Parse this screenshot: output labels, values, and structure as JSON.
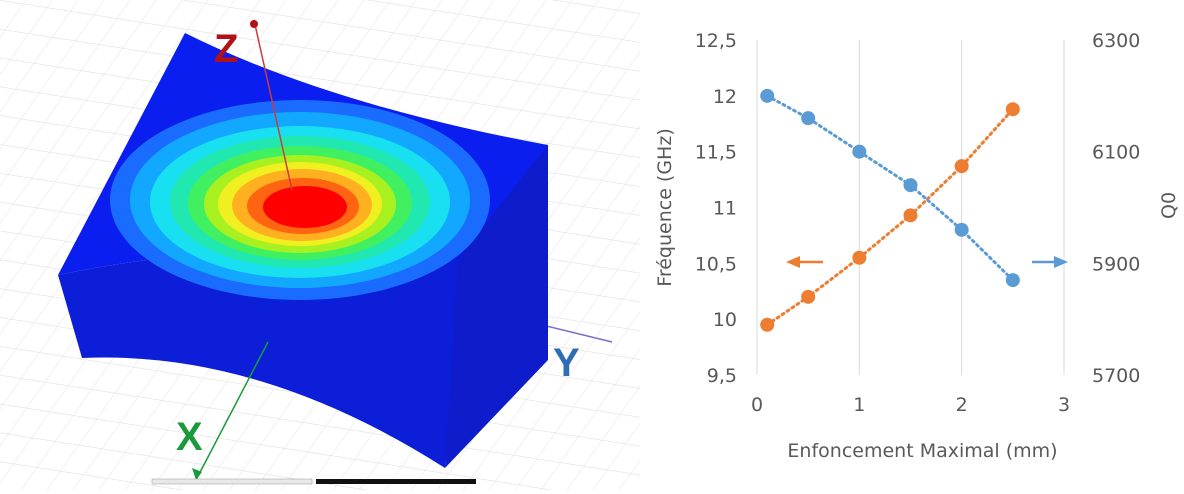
{
  "simulation": {
    "axis_labels": {
      "z": "Z",
      "x": "X",
      "y": "Y"
    },
    "colors": {
      "z": "#b01218",
      "x": "#1a9a3a",
      "y": "#2d6eb4",
      "body": "#0b1ef0",
      "hotspot": "#ff0000"
    }
  },
  "chart_data": {
    "type": "scatter",
    "xlabel": "Enfoncement Maximal (mm)",
    "ylabel": "Fréquence (GHz)",
    "y2label": "Q0",
    "xlim": [
      0,
      3
    ],
    "ylim": [
      9.5,
      12.5
    ],
    "y2lim": [
      5700,
      6300
    ],
    "x_ticks": [
      "0",
      "1",
      "2",
      "3"
    ],
    "y_ticks": [
      "9,5",
      "10",
      "10,5",
      "11",
      "11,5",
      "12",
      "12,5"
    ],
    "y2_ticks": [
      "5700",
      "5900",
      "6100",
      "6300"
    ],
    "grid": "vertical",
    "series": [
      {
        "axis": "left",
        "color": "#ed7d31",
        "trendline": "dotted",
        "indicator_arrow": "left",
        "x": [
          0.1,
          0.5,
          1.0,
          1.5,
          2.0,
          2.5
        ],
        "y": [
          9.95,
          10.2,
          10.55,
          10.93,
          11.37,
          11.88
        ]
      },
      {
        "axis": "right",
        "color": "#5b9bd5",
        "trendline": "dotted",
        "indicator_arrow": "right",
        "x": [
          0.1,
          0.5,
          1.0,
          1.5,
          2.0,
          2.5
        ],
        "y": [
          6200,
          6160,
          6100,
          6040,
          5960,
          5870
        ]
      }
    ]
  }
}
